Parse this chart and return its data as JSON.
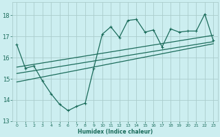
{
  "xlabel": "Humidex (Indice chaleur)",
  "bg_color": "#cceef0",
  "grid_color": "#aacccc",
  "line_color": "#1a6b5a",
  "xlim": [
    -0.5,
    23.5
  ],
  "ylim": [
    13.0,
    18.6
  ],
  "yticks": [
    13,
    14,
    15,
    16,
    17,
    18
  ],
  "xticks": [
    0,
    1,
    2,
    3,
    4,
    5,
    6,
    7,
    8,
    9,
    10,
    11,
    12,
    13,
    14,
    15,
    16,
    17,
    18,
    19,
    20,
    21,
    22,
    23
  ],
  "main_line_x": [
    0,
    1,
    2,
    3,
    4,
    5,
    6,
    7,
    8,
    9,
    10,
    11,
    12,
    13,
    14,
    15,
    16,
    17,
    18,
    19,
    20,
    21,
    22,
    23
  ],
  "main_line_y": [
    16.6,
    15.5,
    15.6,
    14.9,
    14.3,
    13.8,
    13.5,
    13.7,
    13.85,
    15.5,
    17.1,
    17.45,
    16.95,
    17.75,
    17.8,
    17.2,
    17.3,
    16.5,
    17.35,
    17.2,
    17.25,
    17.25,
    18.05,
    16.8
  ],
  "reg_line1_x": [
    0,
    23
  ],
  "reg_line1_y": [
    15.55,
    17.05
  ],
  "reg_line2_x": [
    0,
    23
  ],
  "reg_line2_y": [
    15.25,
    16.75
  ],
  "reg_line3_x": [
    0,
    23
  ],
  "reg_line3_y": [
    14.85,
    16.65
  ]
}
